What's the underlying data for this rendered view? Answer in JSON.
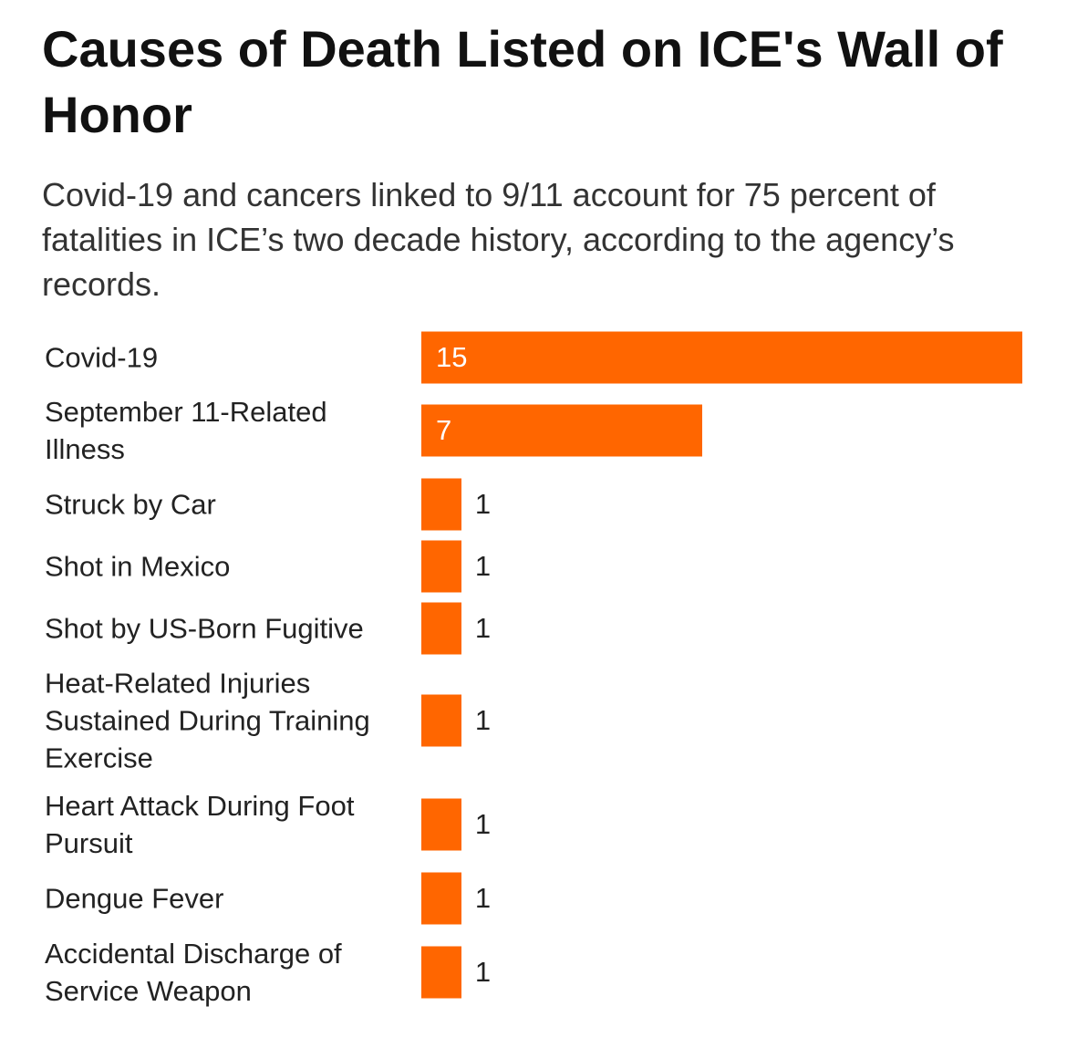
{
  "chart_data": {
    "type": "bar",
    "orientation": "horizontal",
    "title": "Causes of Death Listed on ICE's Wall of Honor",
    "subtitle": "Covid-19 and cancers linked to 9/11 account for 75 percent of fatalities in ICE’s two decade history, according to the agency’s records.",
    "categories": [
      "Covid-19",
      "September 11-Related Illness",
      "Struck by Car",
      "Shot in Mexico",
      "Shot by US-Born Fugitive",
      "Heat-Related Injuries Sustained During Training Exercise",
      "Heart Attack During Foot Pursuit",
      "Dengue Fever",
      "Accidental Discharge of Service Weapon"
    ],
    "values": [
      15,
      7,
      1,
      1,
      1,
      1,
      1,
      1,
      1
    ],
    "xlim": [
      0,
      15
    ],
    "grid": false,
    "legend": "none",
    "bar_color": "#ff6600"
  }
}
